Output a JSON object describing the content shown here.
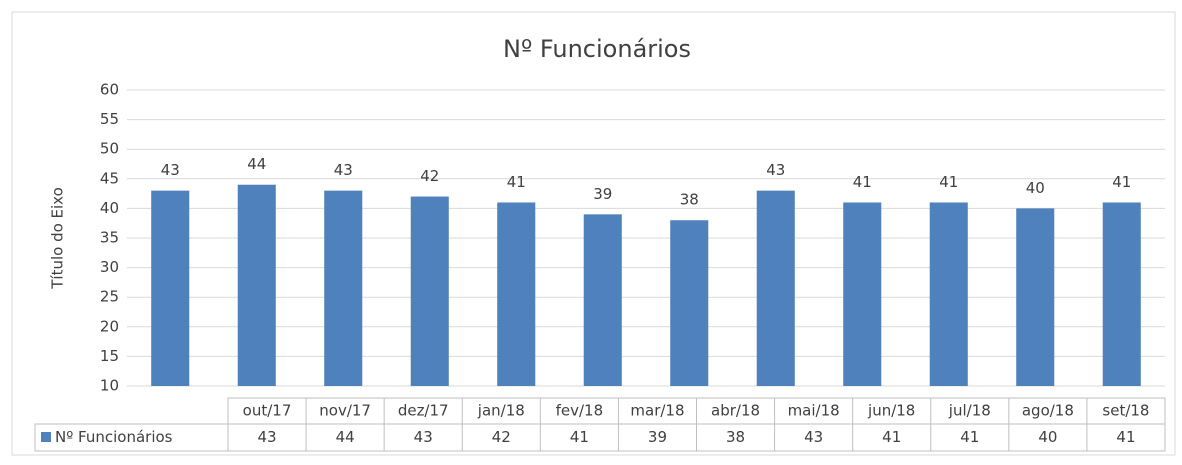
{
  "chart_data": {
    "type": "bar",
    "title": "Nº Funcionários",
    "y_label": "Título do Eixo",
    "categories": [
      "out/17",
      "nov/17",
      "dez/17",
      "jan/18",
      "fev/18",
      "mar/18",
      "abr/18",
      "mai/18",
      "jun/18",
      "jul/18",
      "ago/18",
      "set/18"
    ],
    "series": [
      {
        "name": "Nº Funcionários",
        "color": "#4f81bd",
        "values": [
          43,
          44,
          43,
          42,
          41,
          39,
          38,
          43,
          41,
          41,
          40,
          41
        ]
      }
    ],
    "ylim": [
      10,
      60
    ],
    "yticks": [
      10,
      15,
      20,
      25,
      30,
      35,
      40,
      45,
      50,
      55,
      60
    ],
    "grid": true,
    "data_table": true
  }
}
